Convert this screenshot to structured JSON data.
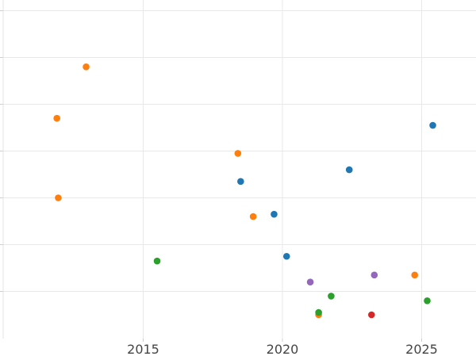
{
  "chart_data": {
    "type": "scatter",
    "title": "",
    "xlabel": "",
    "ylabel": "",
    "xlim": [
      2010,
      2027
    ],
    "ylim": [
      0,
      7.1
    ],
    "x_ticks": [
      2015,
      2020,
      2025
    ],
    "y_tick_values": [
      1,
      2,
      3,
      4,
      5,
      6,
      7
    ],
    "show_y_tick_labels": false,
    "grid": true,
    "legend": "none",
    "series": [
      {
        "color": "#1f77b4",
        "points": [
          {
            "x": 2018.5,
            "y": 3.35
          },
          {
            "x": 2019.7,
            "y": 2.65
          },
          {
            "x": 2020.15,
            "y": 1.75
          },
          {
            "x": 2022.4,
            "y": 3.6
          },
          {
            "x": 2025.4,
            "y": 4.55
          }
        ]
      },
      {
        "color": "#ff7f0e",
        "points": [
          {
            "x": 2012.95,
            "y": 5.8
          },
          {
            "x": 2011.9,
            "y": 4.7
          },
          {
            "x": 2011.95,
            "y": 3.0
          },
          {
            "x": 2018.4,
            "y": 3.95
          },
          {
            "x": 2018.95,
            "y": 2.6
          },
          {
            "x": 2021.3,
            "y": 0.5
          },
          {
            "x": 2024.75,
            "y": 1.35
          }
        ]
      },
      {
        "color": "#2ca02c",
        "points": [
          {
            "x": 2015.5,
            "y": 1.65
          },
          {
            "x": 2021.3,
            "y": 0.55
          },
          {
            "x": 2021.75,
            "y": 0.9
          },
          {
            "x": 2025.2,
            "y": 0.8
          }
        ]
      },
      {
        "color": "#d62728",
        "points": [
          {
            "x": 2023.2,
            "y": 0.5
          }
        ]
      },
      {
        "color": "#9467bd",
        "points": [
          {
            "x": 2021.0,
            "y": 1.2
          },
          {
            "x": 2023.3,
            "y": 1.35
          }
        ]
      }
    ]
  }
}
